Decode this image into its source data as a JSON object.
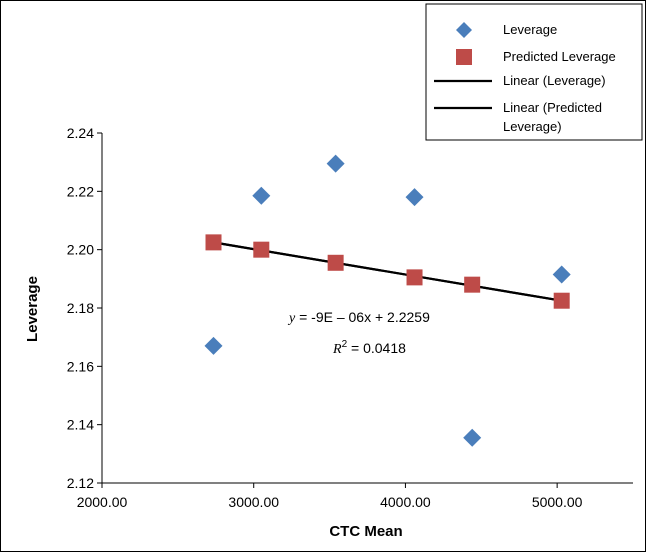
{
  "chart_data": {
    "type": "scatter",
    "xlabel": "CTC Mean",
    "ylabel": "Leverage",
    "xlim": [
      2000,
      5500
    ],
    "ylim": [
      2.12,
      2.24
    ],
    "x_ticks": [
      "2000.00",
      "3000.00",
      "4000.00",
      "5000.00"
    ],
    "x_tick_values": [
      2000,
      3000,
      4000,
      5000
    ],
    "y_ticks": [
      "2.12",
      "2.14",
      "2.16",
      "2.18",
      "2.20",
      "2.22",
      "2.24"
    ],
    "y_tick_values": [
      2.12,
      2.14,
      2.16,
      2.18,
      2.2,
      2.22,
      2.24
    ],
    "grid": false,
    "legend_position": "top-right",
    "series": [
      {
        "name": "Leverage",
        "marker": "diamond",
        "color": "#4a7ebb",
        "x": [
          2735,
          3050,
          3540,
          4060,
          4440,
          5030
        ],
        "y": [
          2.167,
          2.2185,
          2.2295,
          2.218,
          2.1355,
          2.1915
        ]
      },
      {
        "name": "Predicted Leverage",
        "marker": "square",
        "color": "#be4b48",
        "x": [
          2735,
          3050,
          3540,
          4060,
          4440,
          5030
        ],
        "y": [
          2.2025,
          2.2,
          2.1955,
          2.1905,
          2.188,
          2.1825
        ]
      }
    ],
    "trendlines": [
      {
        "name": "Linear (Leverage)",
        "color": "#000000",
        "x": [
          2735,
          5030
        ],
        "y": [
          2.2025,
          2.1825
        ]
      },
      {
        "name": "Linear (Predicted Leverage)",
        "color": "#000000",
        "x": [
          2735,
          5030
        ],
        "y": [
          2.2025,
          2.1825
        ]
      }
    ],
    "legend": {
      "entries": [
        {
          "label": "Leverage",
          "kind": "diamond",
          "color": "#4a7ebb"
        },
        {
          "label": "Predicted Leverage",
          "kind": "square",
          "color": "#be4b48"
        },
        {
          "label": "Linear (Leverage)",
          "kind": "line",
          "color": "#000000"
        },
        {
          "label_lines": [
            "Linear (Predicted",
            "Leverage)"
          ],
          "kind": "line",
          "color": "#000000"
        }
      ]
    },
    "annotations": {
      "equation_var": "y",
      "equation_rest": " = -9E – 06x + 2.2259",
      "r2_var": "R",
      "r2_sup": "2",
      "r2_rest": " = 0.0418"
    }
  }
}
